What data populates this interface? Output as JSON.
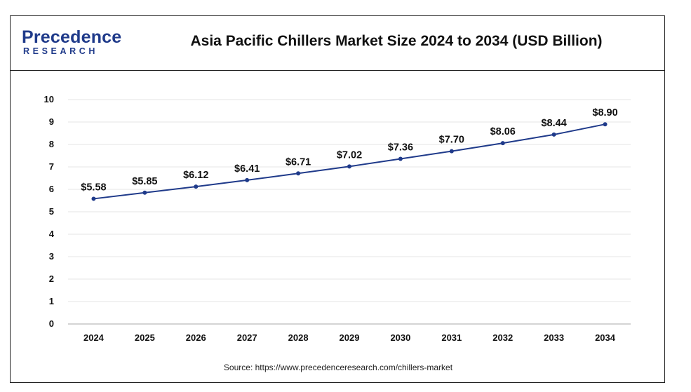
{
  "logo": {
    "word_top": "Precedence",
    "word_bottom": "RESEARCH",
    "color": "#1f3a8a"
  },
  "header": {
    "title": "Asia Pacific Chillers Market Size 2024 to 2034 (USD Billion)"
  },
  "chart_data": {
    "type": "line",
    "title": "Asia Pacific Chillers Market Size 2024 to 2034 (USD Billion)",
    "xlabel": "",
    "ylabel": "",
    "categories": [
      "2024",
      "2025",
      "2026",
      "2027",
      "2028",
      "2029",
      "2030",
      "2031",
      "2032",
      "2033",
      "2034"
    ],
    "series": [
      {
        "values": [
          5.58,
          5.85,
          6.12,
          6.41,
          6.71,
          7.02,
          7.36,
          7.7,
          8.06,
          8.44,
          8.9
        ],
        "labels": [
          "$5.58",
          "$5.85",
          "$6.12",
          "$6.41",
          "$6.71",
          "$7.02",
          "$7.36",
          "$7.70",
          "$8.06",
          "$8.44",
          "$8.90"
        ],
        "color": "#1f3a8a"
      }
    ],
    "ylim": [
      0,
      10
    ],
    "yticks": [
      "0",
      "1",
      "2",
      "3",
      "4",
      "5",
      "6",
      "7",
      "8",
      "9",
      "10"
    ],
    "grid": true
  },
  "footer": {
    "source": "Source: https://www.precedenceresearch.com/chillers-market"
  }
}
